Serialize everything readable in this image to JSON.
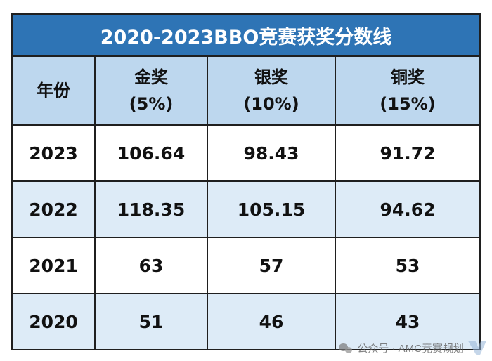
{
  "title": "2020-2023BBO竞赛获奖分数线",
  "columns": {
    "year": "年份",
    "gold": {
      "name": "金奖",
      "pct": "(5%)"
    },
    "silver": {
      "name": "银奖",
      "pct": "(10%)"
    },
    "bronze": {
      "name": "铜奖",
      "pct": "(15%)"
    }
  },
  "rows": [
    {
      "year": "2023",
      "gold": "106.64",
      "silver": "98.43",
      "bronze": "91.72"
    },
    {
      "year": "2022",
      "gold": "118.35",
      "silver": "105.15",
      "bronze": "94.62"
    },
    {
      "year": "2021",
      "gold": "63",
      "silver": "57",
      "bronze": "53"
    },
    {
      "year": "2020",
      "gold": "51",
      "silver": "46",
      "bronze": "43"
    }
  ],
  "watermark": "公众号 · AMC竞赛规划",
  "colors": {
    "title_bg": "#2e74b5",
    "header_bg": "#bdd7ee",
    "row_tint": "#ddebf7",
    "border": "#1f1f1f"
  },
  "icons": [
    "wechat-icon",
    "brand-logo-icon"
  ]
}
